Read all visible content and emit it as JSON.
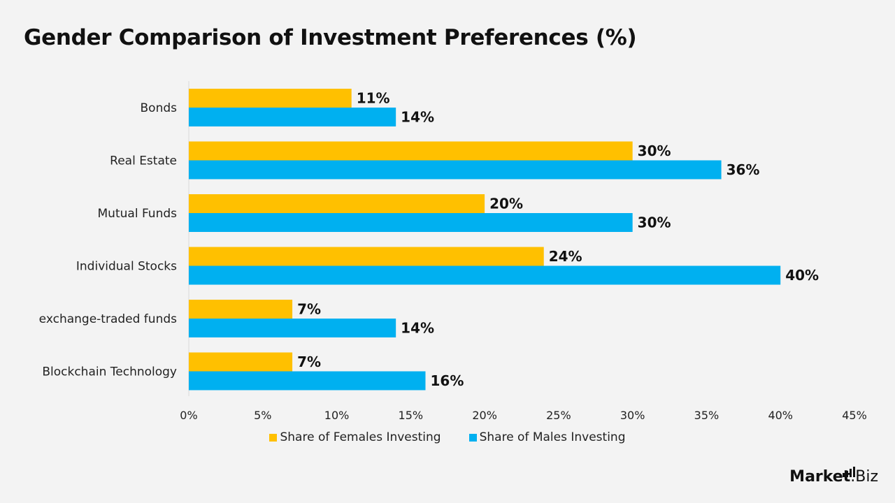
{
  "title": "Gender Comparison of Investment Preferences (%)",
  "colors": {
    "females": "#FFC000",
    "males": "#00B0F0",
    "axis": "#d9d9d9"
  },
  "brand": {
    "name_bold": "Market",
    "name_rest": ".Biz"
  },
  "chart_data": {
    "type": "bar",
    "orientation": "horizontal",
    "title": "Gender Comparison of Investment Preferences (%)",
    "categories": [
      "Bonds",
      "Real Estate",
      "Mutual Funds",
      "Individual Stocks",
      "exchange-traded funds",
      "Blockchain Technology"
    ],
    "series": [
      {
        "name": "Share of Females Investing",
        "values": [
          11,
          30,
          20,
          24,
          7,
          7
        ],
        "labels": [
          "11%",
          "30%",
          "20%",
          "24%",
          "7%",
          "7%"
        ],
        "color": "#FFC000"
      },
      {
        "name": "Share of Males Investing",
        "values": [
          14,
          36,
          30,
          40,
          14,
          16
        ],
        "labels": [
          "14%",
          "36%",
          "30%",
          "40%",
          "14%",
          "16%"
        ],
        "color": "#00B0F0"
      }
    ],
    "xlim": [
      0,
      45
    ],
    "xticks": [
      0,
      5,
      10,
      15,
      20,
      25,
      30,
      35,
      40,
      45
    ],
    "xtick_labels": [
      "0%",
      "5%",
      "10%",
      "15%",
      "20%",
      "25%",
      "30%",
      "35%",
      "40%",
      "45%"
    ],
    "grid": false,
    "legend": "bottom"
  }
}
